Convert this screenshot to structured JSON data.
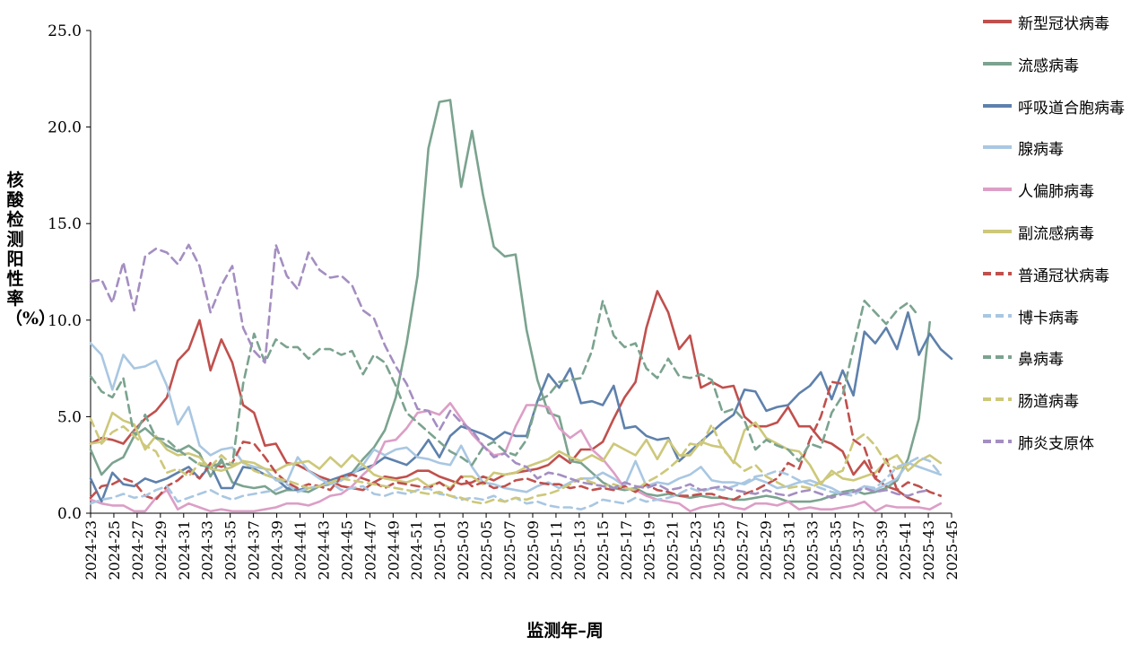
{
  "chart_data": {
    "type": "line",
    "title": "",
    "xlabel": "监测年–周",
    "ylabel": "核酸检测阳性率（%）",
    "ylim": [
      0,
      25
    ],
    "yticks": [
      "0.0",
      "5.0",
      "10.0",
      "15.0",
      "20.0",
      "25.0"
    ],
    "x_tick_labels": [
      "2024-23",
      "2024-25",
      "2024-27",
      "2024-29",
      "2024-31",
      "2024-33",
      "2024-35",
      "2024-37",
      "2024-39",
      "2024-41",
      "2024-43",
      "2024-45",
      "2024-47",
      "2024-49",
      "2024-51",
      "2025-01",
      "2025-03",
      "2025-05",
      "2025-07",
      "2025-09",
      "2025-11",
      "2025-13",
      "2025-15",
      "2025-17",
      "2025-19",
      "2025-21",
      "2025-23",
      "2025-25",
      "2025-27",
      "2025-29",
      "2025-31",
      "2025-33",
      "2025-35",
      "2025-37",
      "2025-39",
      "2025-41",
      "2025-43",
      "2025-45"
    ],
    "legend_position": "right",
    "grid": false,
    "series": [
      {
        "name": "新型冠状病毒",
        "color": "#c0504d",
        "dash": false,
        "values": [
          3.6,
          3.9,
          3.8,
          3.6,
          4.3,
          4.9,
          5.3,
          6.0,
          7.9,
          8.5,
          10.0,
          7.4,
          9.0,
          7.8,
          5.6,
          5.2,
          3.5,
          3.6,
          2.6,
          2.5,
          2.2,
          1.9,
          1.7,
          1.4,
          1.3,
          1.2,
          1.6,
          1.9,
          1.8,
          1.9,
          2.2,
          2.2,
          1.9,
          1.7,
          1.5,
          1.6,
          1.9,
          1.7,
          2.0,
          2.1,
          2.2,
          2.3,
          2.5,
          3.0,
          2.6,
          3.3,
          3.3,
          3.7,
          4.9,
          6.0,
          6.8,
          9.6,
          11.5,
          10.4,
          8.5,
          9.2,
          6.5,
          6.8,
          6.5,
          6.6,
          5.0,
          4.5,
          4.5,
          4.7,
          5.5,
          4.5,
          4.5,
          3.8,
          3.6,
          3.2,
          2.0,
          2.7,
          1.8,
          1.4,
          1.2,
          0.8,
          0.6
        ]
      },
      {
        "name": "流感病毒",
        "color": "#7ba38f",
        "dash": false,
        "values": [
          3.3,
          2.0,
          2.6,
          2.9,
          4.0,
          4.4,
          3.9,
          3.5,
          3.2,
          3.5,
          3.1,
          1.9,
          2.8,
          1.6,
          1.4,
          1.3,
          1.4,
          1.0,
          1.2,
          1.2,
          1.1,
          1.4,
          1.5,
          1.7,
          2.1,
          2.8,
          3.4,
          4.3,
          6.0,
          8.8,
          12.3,
          18.9,
          21.3,
          21.4,
          16.9,
          19.8,
          16.5,
          13.8,
          13.3,
          13.4,
          9.5,
          6.9,
          5.2,
          5.0,
          2.7,
          2.6,
          2.1,
          1.6,
          1.3,
          1.2,
          1.3,
          1.0,
          0.9,
          1.0,
          0.9,
          0.8,
          0.9,
          0.8,
          0.8,
          0.7,
          0.7,
          0.8,
          0.9,
          0.8,
          0.6,
          0.6,
          0.6,
          0.7,
          0.9,
          1.1,
          1.2,
          1.0,
          1.1,
          1.3,
          1.7,
          2.8,
          4.9,
          9.9
        ]
      },
      {
        "name": "呼吸道合胞病毒",
        "color": "#5e81ac",
        "dash": false,
        "values": [
          1.8,
          0.6,
          2.1,
          1.5,
          1.4,
          1.8,
          1.6,
          1.8,
          2.1,
          2.4,
          1.8,
          2.5,
          1.3,
          1.3,
          2.4,
          2.3,
          2.0,
          1.8,
          1.3,
          1.2,
          1.3,
          1.4,
          1.7,
          1.9,
          2.1,
          2.3,
          2.5,
          2.9,
          2.7,
          2.5,
          3.0,
          3.8,
          2.9,
          4.0,
          4.5,
          4.3,
          4.1,
          3.8,
          4.2,
          4.0,
          4.0,
          5.8,
          7.2,
          6.5,
          7.5,
          5.7,
          5.8,
          5.6,
          6.6,
          4.4,
          4.5,
          4.0,
          3.8,
          3.9,
          2.7,
          3.2,
          3.7,
          4.2,
          4.7,
          5.1,
          6.4,
          6.3,
          5.3,
          5.5,
          5.6,
          6.2,
          6.6,
          7.3,
          5.9,
          7.4,
          6.1,
          9.4,
          8.8,
          9.6,
          8.5,
          10.4,
          8.2,
          9.3,
          8.5,
          8.0
        ]
      },
      {
        "name": "腺病毒",
        "color": "#a9c7e2",
        "dash": false,
        "values": [
          8.8,
          8.2,
          6.4,
          8.2,
          7.5,
          7.6,
          7.9,
          6.6,
          4.6,
          5.5,
          3.5,
          3.0,
          3.3,
          3.4,
          2.6,
          2.4,
          2.3,
          1.7,
          1.6,
          2.9,
          2.2,
          1.8,
          1.5,
          1.7,
          2.0,
          2.5,
          3.3,
          3.0,
          3.3,
          3.4,
          2.9,
          2.8,
          2.6,
          2.5,
          3.5,
          2.4,
          1.6,
          1.5,
          1.3,
          1.2,
          1.1,
          1.4,
          1.6,
          1.3,
          1.6,
          1.8,
          1.8,
          2.1,
          1.8,
          1.4,
          2.7,
          1.4,
          1.6,
          1.5,
          1.8,
          2.0,
          2.4,
          1.7,
          1.6,
          1.6,
          1.5,
          1.8,
          1.6,
          1.3,
          1.4,
          1.6,
          1.7,
          1.5,
          1.3,
          1.0,
          1.1,
          1.4,
          1.2,
          1.5,
          1.8,
          2.6,
          2.4,
          2.2,
          2.0
        ]
      },
      {
        "name": "人偏肺病毒",
        "color": "#dc9ec6",
        "dash": false,
        "values": [
          0.7,
          0.5,
          0.4,
          0.4,
          0.1,
          0.1,
          0.8,
          1.2,
          0.2,
          0.5,
          0.3,
          0.1,
          0.2,
          0.1,
          0.1,
          0.1,
          0.2,
          0.3,
          0.5,
          0.5,
          0.4,
          0.6,
          0.9,
          1.0,
          1.4,
          2.0,
          2.5,
          3.7,
          3.8,
          4.4,
          5.2,
          5.3,
          5.1,
          5.7,
          4.9,
          4.1,
          3.5,
          3.0,
          3.1,
          4.5,
          5.6,
          5.6,
          5.5,
          4.4,
          3.9,
          4.3,
          3.3,
          2.8,
          2.1,
          1.3,
          1.2,
          0.9,
          0.7,
          0.6,
          0.5,
          0.1,
          0.3,
          0.4,
          0.5,
          0.3,
          0.2,
          0.5,
          0.5,
          0.4,
          0.6,
          0.2,
          0.3,
          0.2,
          0.2,
          0.3,
          0.4,
          0.6,
          0.1,
          0.4,
          0.3,
          0.3,
          0.3,
          0.2,
          0.5
        ]
      },
      {
        "name": "副流感病毒",
        "color": "#cdc87a",
        "dash": false,
        "values": [
          3.6,
          3.7,
          5.2,
          4.8,
          4.6,
          3.3,
          4.0,
          3.3,
          3.0,
          3.1,
          2.9,
          2.3,
          2.2,
          2.4,
          2.7,
          2.6,
          2.3,
          2.2,
          2.5,
          2.6,
          2.7,
          2.3,
          2.9,
          2.4,
          3.0,
          2.5,
          2.0,
          1.8,
          1.7,
          1.6,
          1.8,
          1.4,
          1.6,
          1.3,
          1.9,
          1.9,
          1.5,
          2.1,
          2.0,
          2.1,
          2.4,
          2.6,
          2.8,
          3.2,
          2.9,
          2.7,
          3.0,
          2.7,
          3.6,
          3.3,
          3.0,
          3.8,
          2.8,
          3.8,
          3.0,
          3.0,
          3.7,
          3.5,
          3.4,
          2.6,
          4.3,
          4.7,
          3.9,
          3.6,
          3.3,
          3.2,
          2.5,
          1.5,
          2.2,
          1.8,
          1.7,
          1.9,
          2.1,
          2.7,
          3.0,
          2.2,
          2.7,
          3.0,
          2.6
        ]
      },
      {
        "name": "普通冠状病毒",
        "color": "#c0504d",
        "dash": true,
        "values": [
          0.8,
          1.4,
          1.5,
          1.8,
          1.6,
          0.9,
          0.7,
          1.4,
          1.7,
          2.2,
          1.8,
          2.6,
          2.4,
          2.6,
          3.7,
          3.6,
          2.9,
          2.1,
          1.6,
          1.3,
          1.5,
          1.4,
          1.2,
          1.9,
          2.0,
          1.8,
          1.6,
          1.3,
          1.6,
          1.5,
          1.4,
          1.3,
          1.6,
          1.2,
          1.9,
          1.4,
          1.6,
          1.3,
          1.4,
          1.7,
          1.8,
          1.6,
          1.5,
          1.5,
          1.3,
          1.4,
          1.2,
          1.3,
          1.2,
          1.4,
          1.1,
          1.5,
          1.2,
          1.1,
          0.9,
          0.9,
          1.0,
          1.0,
          0.8,
          0.7,
          1.0,
          1.2,
          1.5,
          1.8,
          2.6,
          2.3,
          3.8,
          5.0,
          6.8,
          6.7,
          3.8,
          3.4,
          1.8,
          2.8,
          1.2,
          1.6,
          1.4,
          1.1,
          0.9
        ]
      },
      {
        "name": "博卡病毒",
        "color": "#a9c7e2",
        "dash": true,
        "values": [
          0.5,
          0.7,
          0.8,
          1.0,
          0.8,
          0.9,
          1.2,
          1.4,
          0.6,
          0.8,
          1.0,
          1.2,
          0.9,
          0.7,
          0.9,
          1.0,
          1.1,
          1.2,
          1.5,
          1.1,
          1.3,
          1.4,
          1.6,
          1.2,
          1.3,
          1.4,
          1.0,
          0.9,
          1.1,
          1.0,
          1.2,
          1.3,
          1.0,
          0.9,
          0.7,
          0.8,
          0.7,
          0.9,
          0.6,
          0.8,
          0.5,
          0.6,
          0.4,
          0.3,
          0.3,
          0.2,
          0.4,
          0.7,
          0.6,
          0.5,
          0.8,
          0.6,
          0.7,
          0.8,
          1.0,
          1.3,
          1.1,
          1.3,
          1.2,
          1.4,
          1.6,
          1.9,
          2.0,
          2.2,
          2.0,
          1.7,
          1.5,
          1.3,
          1.1,
          1.0,
          0.9,
          1.4,
          1.3,
          1.8,
          2.4,
          2.6,
          2.9,
          2.7,
          2.0
        ]
      },
      {
        "name": "鼻病毒",
        "color": "#7ba38f",
        "dash": true,
        "values": [
          7.1,
          6.3,
          6.0,
          7.0,
          4.0,
          5.1,
          3.9,
          3.8,
          3.3,
          2.9,
          2.5,
          2.4,
          2.6,
          2.5,
          6.7,
          9.3,
          7.8,
          9.0,
          8.6,
          8.6,
          8.0,
          8.5,
          8.5,
          8.2,
          8.4,
          7.2,
          8.2,
          7.8,
          6.6,
          5.2,
          4.7,
          4.2,
          3.7,
          3.2,
          2.9,
          2.5,
          3.4,
          3.7,
          3.2,
          3.0,
          3.8,
          5.8,
          6.1,
          6.8,
          6.9,
          7.0,
          8.4,
          11.0,
          9.2,
          8.6,
          8.8,
          7.5,
          7.0,
          8.0,
          7.1,
          7.0,
          7.2,
          6.9,
          5.2,
          5.4,
          4.8,
          3.3,
          3.8,
          3.5,
          3.3,
          2.7,
          3.6,
          3.4,
          5.2,
          6.1,
          8.6,
          11.0,
          10.4,
          9.8,
          10.5,
          10.9,
          10.2
        ]
      },
      {
        "name": "肠道病毒",
        "color": "#cdc87a",
        "dash": true,
        "values": [
          4.9,
          3.6,
          4.2,
          4.5,
          4.0,
          3.5,
          3.2,
          2.1,
          2.3,
          1.9,
          2.6,
          2.4,
          3.0,
          2.5,
          2.7,
          2.2,
          2.0,
          1.8,
          1.7,
          1.5,
          1.3,
          1.4,
          1.6,
          1.8,
          1.7,
          1.6,
          1.5,
          1.4,
          1.3,
          1.2,
          1.1,
          1.0,
          1.1,
          0.9,
          0.8,
          0.6,
          0.5,
          0.7,
          0.6,
          0.8,
          0.7,
          0.9,
          1.0,
          1.2,
          1.5,
          1.8,
          1.6,
          1.4,
          1.5,
          1.3,
          1.2,
          1.6,
          1.9,
          2.3,
          2.8,
          3.6,
          3.5,
          4.6,
          3.3,
          2.7,
          2.2,
          2.5,
          1.9,
          1.6,
          1.3,
          1.4,
          1.3,
          1.6,
          2.0,
          2.2,
          3.7,
          4.1,
          3.5,
          2.6,
          2.3,
          2.5
        ]
      },
      {
        "name": "肺炎支原体",
        "color": "#a48ec1",
        "dash": true,
        "values": [
          12.0,
          12.1,
          10.9,
          13.0,
          10.5,
          13.3,
          13.7,
          13.5,
          12.9,
          13.9,
          12.8,
          10.4,
          11.8,
          12.8,
          9.6,
          8.4,
          7.8,
          13.9,
          12.3,
          11.6,
          13.5,
          12.6,
          12.2,
          12.3,
          11.8,
          10.5,
          10.1,
          8.7,
          7.6,
          6.7,
          5.4,
          5.3,
          4.3,
          5.3,
          4.7,
          4.3,
          3.5,
          2.9,
          3.1,
          2.6,
          2.4,
          1.8,
          2.1,
          2.0,
          1.8,
          1.6,
          1.5,
          1.4,
          1.3,
          1.6,
          1.4,
          1.3,
          1.5,
          1.2,
          1.3,
          1.5,
          1.2,
          1.3,
          1.4,
          1.2,
          1.1,
          1.0,
          1.2,
          1.0,
          0.9,
          1.1,
          1.2,
          1.0,
          0.8,
          1.0,
          1.1,
          1.3,
          1.1,
          1.2,
          1.0,
          0.9,
          1.1,
          1.2
        ]
      }
    ]
  }
}
